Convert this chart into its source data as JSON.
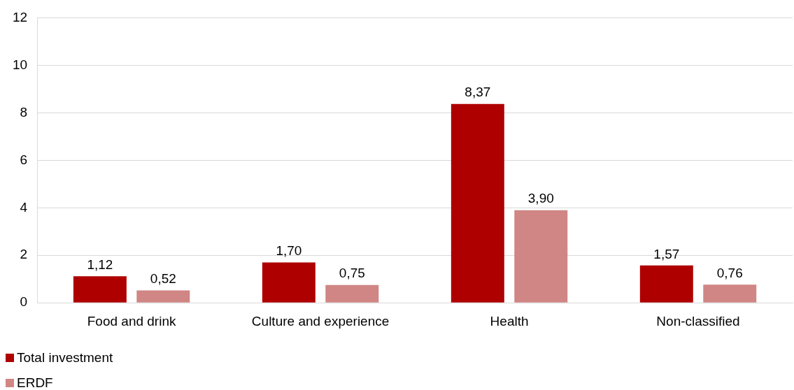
{
  "chart_data": {
    "type": "bar",
    "categories": [
      "Food and drink",
      "Culture and experience",
      "Health",
      "Non-classified"
    ],
    "series": [
      {
        "name": "Total investment",
        "color": "#af0000",
        "values": [
          1.12,
          1.7,
          8.37,
          1.57
        ],
        "value_labels": [
          "1,12",
          "1,70",
          "8,37",
          "1,57"
        ]
      },
      {
        "name": "ERDF",
        "color": "#d08684",
        "values": [
          0.52,
          0.75,
          3.9,
          0.76
        ],
        "value_labels": [
          "0,52",
          "0,75",
          "3,90",
          "0,76"
        ]
      }
    ],
    "ylim": [
      0,
      12
    ],
    "yticks": [
      0,
      2,
      4,
      6,
      8,
      10,
      12
    ],
    "grid": "y",
    "legend": "bottom left"
  }
}
